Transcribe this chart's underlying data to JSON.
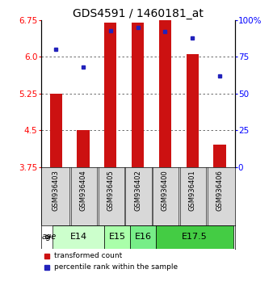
{
  "title": "GDS4591 / 1460181_at",
  "samples": [
    "GSM936403",
    "GSM936404",
    "GSM936405",
    "GSM936402",
    "GSM936400",
    "GSM936401",
    "GSM936406"
  ],
  "transformed_count": [
    5.25,
    4.5,
    6.7,
    6.7,
    6.75,
    6.05,
    4.2
  ],
  "bar_bottom": 3.75,
  "percentile_rank": [
    80,
    68,
    93,
    95,
    92,
    88,
    62
  ],
  "ylim_left": [
    3.75,
    6.75
  ],
  "ylim_right": [
    0,
    100
  ],
  "yticks_left": [
    3.75,
    4.5,
    5.25,
    6.0,
    6.75
  ],
  "yticks_right": [
    0,
    25,
    50,
    75,
    100
  ],
  "ytick_labels_right": [
    "0",
    "25",
    "50",
    "75",
    "100%"
  ],
  "bar_color": "#cc1111",
  "dot_color": "#2222bb",
  "grid_color": "#555555",
  "sample_bg_color": "#d8d8d8",
  "title_fontsize": 10,
  "tick_fontsize": 7.5,
  "sample_fontsize": 6,
  "group_label_fontsize": 8,
  "groups": [
    {
      "label": "E14",
      "cols": [
        0,
        1
      ],
      "color": "#ccffcc"
    },
    {
      "label": "E15",
      "cols": [
        2
      ],
      "color": "#aaffaa"
    },
    {
      "label": "E16",
      "cols": [
        3
      ],
      "color": "#77ee88"
    },
    {
      "label": "E17.5",
      "cols": [
        4,
        5,
        6
      ],
      "color": "#44cc44"
    }
  ]
}
